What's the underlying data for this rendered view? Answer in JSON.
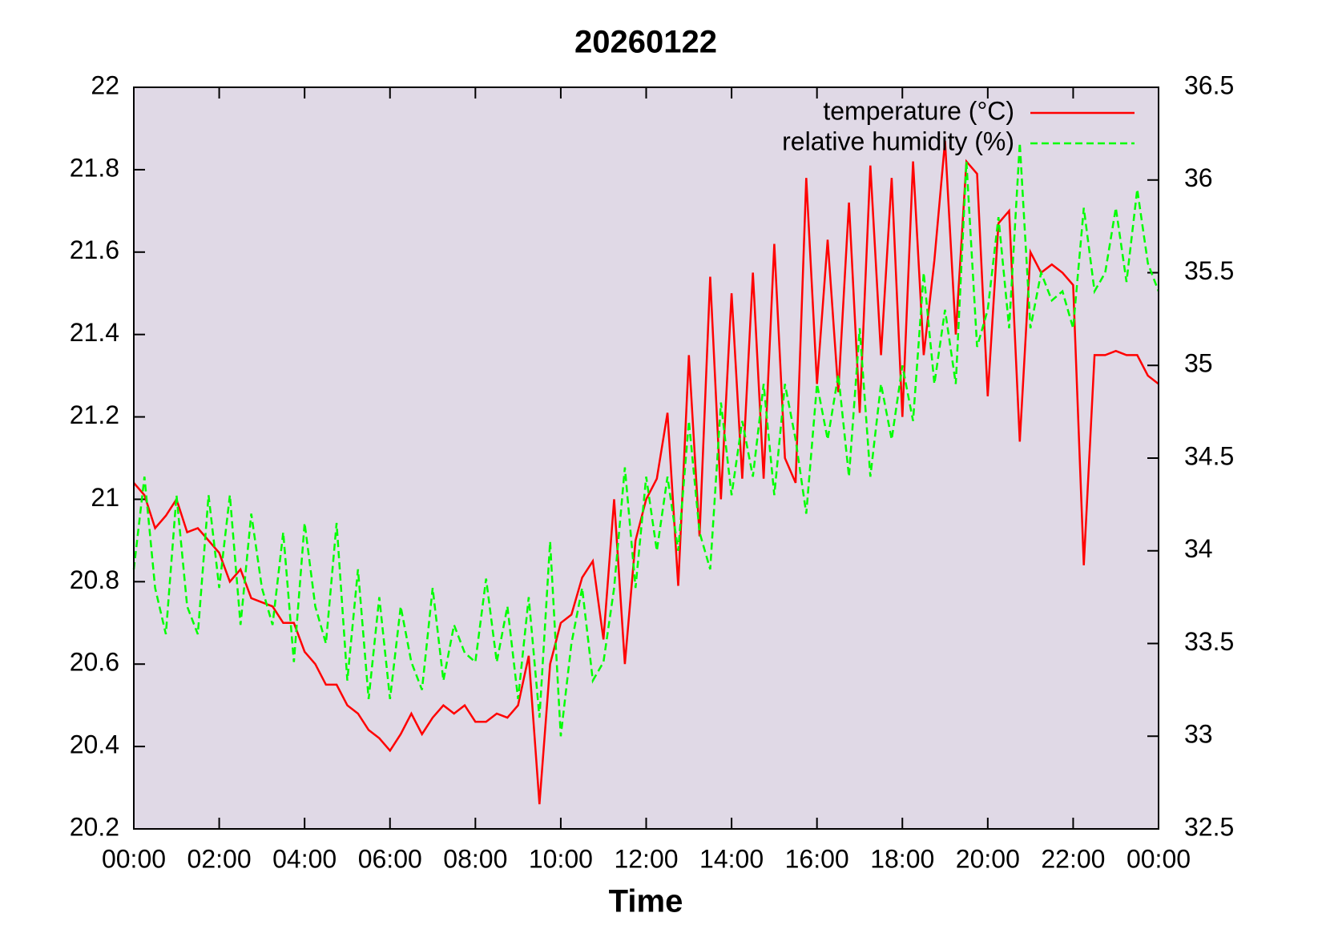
{
  "chart_data": {
    "type": "line",
    "title": "20260122",
    "xlabel": "Time",
    "xlim": [
      0,
      24
    ],
    "xticks": [
      {
        "value": 0,
        "label": "00:00"
      },
      {
        "value": 2,
        "label": "02:00"
      },
      {
        "value": 4,
        "label": "04:00"
      },
      {
        "value": 6,
        "label": "06:00"
      },
      {
        "value": 8,
        "label": "08:00"
      },
      {
        "value": 10,
        "label": "10:00"
      },
      {
        "value": 12,
        "label": "12:00"
      },
      {
        "value": 14,
        "label": "14:00"
      },
      {
        "value": 16,
        "label": "16:00"
      },
      {
        "value": 18,
        "label": "18:00"
      },
      {
        "value": 20,
        "label": "20:00"
      },
      {
        "value": 22,
        "label": "22:00"
      },
      {
        "value": 24,
        "label": "00:00"
      }
    ],
    "ylim": [
      20.2,
      22
    ],
    "yticks": [
      20.2,
      20.4,
      20.6,
      20.8,
      21,
      21.2,
      21.4,
      21.6,
      21.8,
      22
    ],
    "y2lim": [
      32.5,
      36.5
    ],
    "y2ticks": [
      32.5,
      33,
      33.5,
      34,
      34.5,
      35,
      35.5,
      36,
      36.5
    ],
    "legend": "upper right",
    "x": [
      0,
      0.25,
      0.5,
      0.75,
      1,
      1.25,
      1.5,
      1.75,
      2,
      2.25,
      2.5,
      2.75,
      3,
      3.25,
      3.5,
      3.75,
      4,
      4.25,
      4.5,
      4.75,
      5,
      5.25,
      5.5,
      5.75,
      6,
      6.25,
      6.5,
      6.75,
      7,
      7.25,
      7.5,
      7.75,
      8,
      8.25,
      8.5,
      8.75,
      9,
      9.25,
      9.5,
      9.75,
      10,
      10.25,
      10.5,
      10.75,
      11,
      11.25,
      11.5,
      11.75,
      12,
      12.25,
      12.5,
      12.75,
      13,
      13.25,
      13.5,
      13.75,
      14,
      14.25,
      14.5,
      14.75,
      15,
      15.25,
      15.5,
      15.75,
      16,
      16.25,
      16.5,
      16.75,
      17,
      17.25,
      17.5,
      17.75,
      18,
      18.25,
      18.5,
      18.75,
      19,
      19.25,
      19.5,
      19.75,
      20,
      20.25,
      20.5,
      20.75,
      21,
      21.25,
      21.5,
      21.75,
      22,
      22.25,
      22.5,
      22.75,
      23,
      23.25,
      23.5,
      23.75,
      24
    ],
    "series": [
      {
        "name": "temperature (°C)",
        "color": "#ff0000",
        "dash": false,
        "axis": "y",
        "values": [
          21.04,
          21.01,
          20.93,
          20.96,
          21.0,
          20.92,
          20.93,
          20.9,
          20.87,
          20.8,
          20.83,
          20.76,
          20.75,
          20.74,
          20.7,
          20.7,
          20.63,
          20.6,
          20.55,
          20.55,
          20.5,
          20.48,
          20.44,
          20.42,
          20.39,
          20.43,
          20.48,
          20.43,
          20.47,
          20.5,
          20.48,
          20.5,
          20.46,
          20.46,
          20.48,
          20.47,
          20.5,
          20.62,
          20.26,
          20.6,
          20.7,
          20.72,
          20.81,
          20.85,
          20.66,
          21.0,
          20.6,
          20.9,
          21.0,
          21.05,
          21.21,
          20.79,
          21.35,
          20.91,
          21.54,
          21.0,
          21.5,
          21.05,
          21.55,
          21.05,
          21.62,
          21.1,
          21.04,
          21.78,
          21.28,
          21.63,
          21.26,
          21.72,
          21.21,
          21.81,
          21.35,
          21.78,
          21.2,
          21.82,
          21.35,
          21.58,
          21.87,
          21.4,
          21.82,
          21.79,
          21.25,
          21.67,
          21.7,
          21.14,
          21.6,
          21.55,
          21.57,
          21.55,
          21.52,
          20.84,
          21.35,
          21.35,
          21.36,
          21.35,
          21.35,
          21.3,
          21.28
        ]
      },
      {
        "name": "relative humidity (%)",
        "color": "#00ff00",
        "dash": true,
        "axis": "y2",
        "values": [
          33.9,
          34.4,
          33.8,
          33.55,
          34.3,
          33.7,
          33.55,
          34.3,
          33.8,
          34.3,
          33.6,
          34.2,
          33.8,
          33.6,
          34.1,
          33.4,
          34.15,
          33.7,
          33.5,
          34.15,
          33.3,
          33.9,
          33.2,
          33.75,
          33.2,
          33.7,
          33.4,
          33.25,
          33.8,
          33.3,
          33.6,
          33.45,
          33.4,
          33.85,
          33.4,
          33.7,
          33.2,
          33.75,
          33.1,
          34.05,
          33.0,
          33.5,
          33.8,
          33.3,
          33.4,
          33.8,
          34.45,
          33.8,
          34.4,
          34.0,
          34.4,
          34.0,
          34.7,
          34.1,
          33.9,
          34.8,
          34.3,
          34.7,
          34.4,
          34.9,
          34.3,
          34.9,
          34.6,
          34.2,
          34.9,
          34.6,
          34.95,
          34.4,
          35.2,
          34.4,
          34.9,
          34.6,
          35.0,
          34.7,
          35.5,
          34.9,
          35.3,
          34.9,
          36.1,
          35.1,
          35.3,
          35.8,
          35.2,
          36.2,
          35.2,
          35.5,
          35.35,
          35.4,
          35.2,
          35.85,
          35.4,
          35.5,
          35.85,
          35.45,
          35.95,
          35.55,
          35.4
        ]
      }
    ]
  }
}
